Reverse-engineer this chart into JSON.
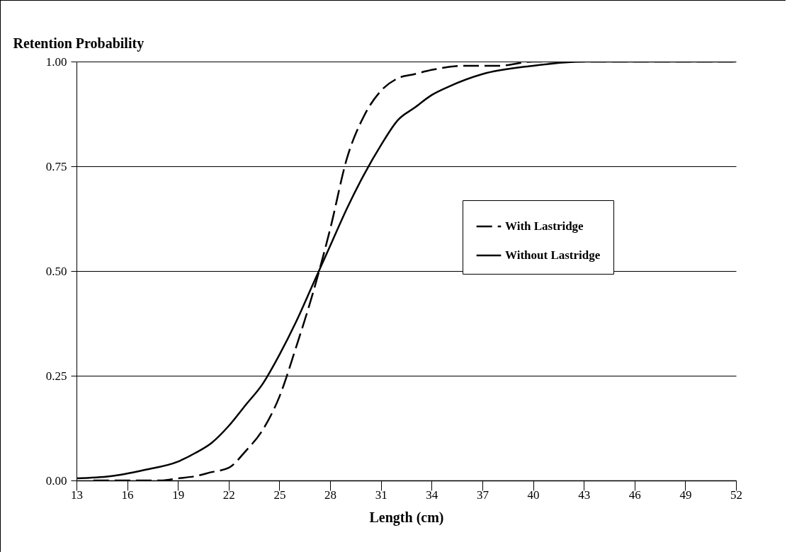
{
  "chart_data": {
    "type": "line",
    "ylabel": "Retention Probability",
    "xlabel": "Length (cm)",
    "xlim": [
      13,
      52
    ],
    "xticks": [
      13,
      16,
      19,
      22,
      25,
      28,
      31,
      34,
      37,
      40,
      43,
      46,
      49,
      52
    ],
    "ylim": [
      0,
      1
    ],
    "yticks": [
      {
        "value": 0,
        "label": "0.00"
      },
      {
        "value": 0.25,
        "label": "0.25"
      },
      {
        "value": 0.5,
        "label": "0.50"
      },
      {
        "value": 0.75,
        "label": "0.75"
      },
      {
        "value": 1,
        "label": "1.00"
      }
    ],
    "grid": "y",
    "legend": "right",
    "marker": "none",
    "series": [
      {
        "name": "With Lastridge",
        "color": "#000000",
        "line_style": "dashed",
        "x": [
          14,
          16,
          18,
          19,
          20,
          21,
          22,
          23,
          24,
          25,
          26,
          27,
          28,
          29,
          30,
          31,
          32,
          33,
          34,
          36,
          38,
          40,
          43,
          46,
          52
        ],
        "values": [
          0,
          0,
          0,
          0.005,
          0.01,
          0.02,
          0.03,
          0.07,
          0.12,
          0.2,
          0.32,
          0.45,
          0.6,
          0.77,
          0.87,
          0.93,
          0.96,
          0.97,
          0.98,
          0.99,
          0.99,
          1,
          1,
          1,
          1
        ]
      },
      {
        "name": "Without Lastridge",
        "color": "#000000",
        "line_style": "solid",
        "x": [
          13,
          15,
          17,
          19,
          20,
          21,
          22,
          23,
          24,
          25,
          26,
          27,
          28,
          29,
          30,
          31,
          32,
          33,
          34,
          35,
          37,
          40,
          43,
          46,
          52
        ],
        "values": [
          0.005,
          0.01,
          0.025,
          0.045,
          0.065,
          0.09,
          0.13,
          0.18,
          0.23,
          0.3,
          0.38,
          0.47,
          0.56,
          0.65,
          0.73,
          0.8,
          0.86,
          0.89,
          0.92,
          0.94,
          0.97,
          0.99,
          1,
          1,
          1
        ]
      }
    ]
  }
}
